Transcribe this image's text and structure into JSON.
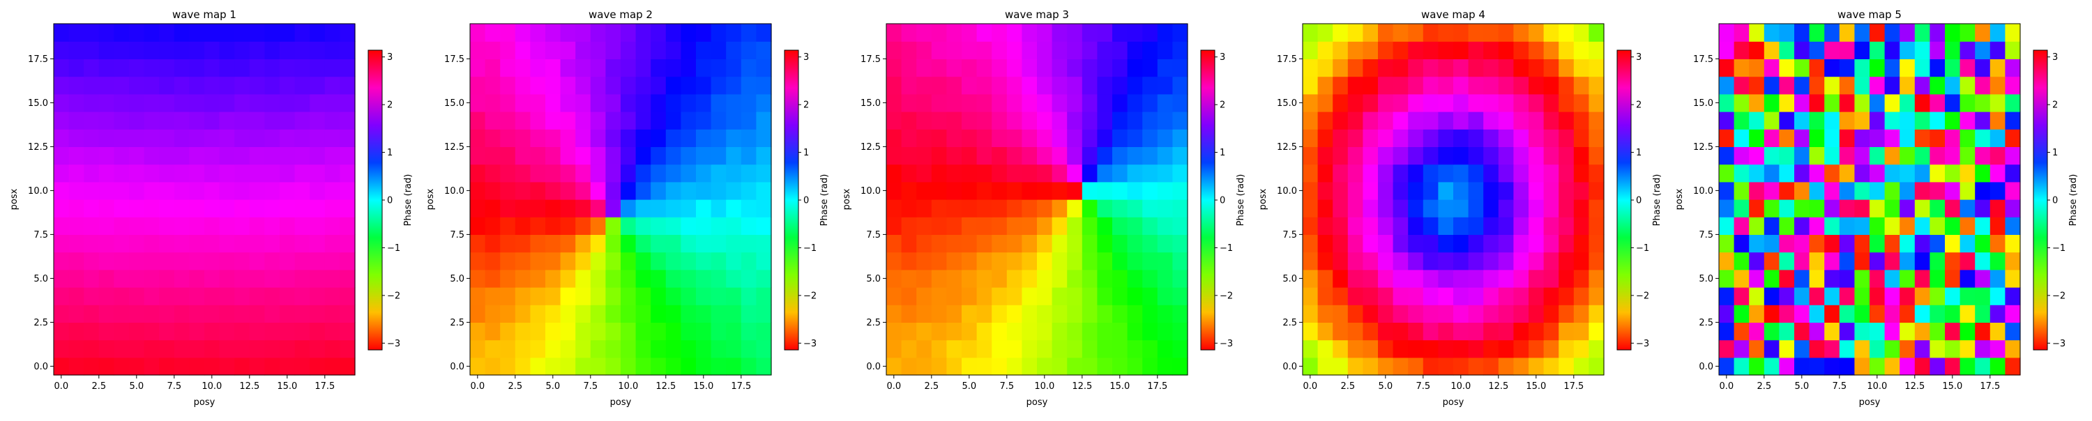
{
  "figure": {
    "colorbar_label": "Phase (rad)",
    "colorbar_ticks": [
      "3",
      "2",
      "1",
      "0",
      "−1",
      "−2",
      "−3"
    ],
    "colorbar_tick_values": [
      3,
      2,
      1,
      0,
      -1,
      -2,
      -3
    ],
    "colormap": "hsv",
    "colormap_stops": [
      "#ff0000",
      "#ffbf00",
      "#80ff00",
      "#00ff40",
      "#00ffff",
      "#0040ff",
      "#8000ff",
      "#ff00bf",
      "#ff0000"
    ]
  },
  "chart_data": [
    {
      "type": "heatmap",
      "title": "wave map 1",
      "xlabel": "posy",
      "ylabel": "posx",
      "xticks": [
        "0.0",
        "2.5",
        "5.0",
        "7.5",
        "10.0",
        "12.5",
        "15.0",
        "17.5"
      ],
      "yticks": [
        "0.0",
        "2.5",
        "5.0",
        "7.5",
        "10.0",
        "12.5",
        "15.0",
        "17.5"
      ],
      "xlim": [
        -0.5,
        19.5
      ],
      "ylim": [
        -0.5,
        19.5
      ],
      "grid_size": [
        20,
        20
      ],
      "value_range": [
        -3.14,
        3.14
      ],
      "pattern": "smooth_gradient"
    },
    {
      "type": "heatmap",
      "title": "wave map 2",
      "xlabel": "posy",
      "ylabel": "posx",
      "xticks": [
        "0.0",
        "2.5",
        "5.0",
        "7.5",
        "10.0",
        "12.5",
        "15.0",
        "17.5"
      ],
      "yticks": [
        "0.0",
        "2.5",
        "5.0",
        "7.5",
        "10.0",
        "12.5",
        "15.0",
        "17.5"
      ],
      "xlim": [
        -0.5,
        19.5
      ],
      "ylim": [
        -0.5,
        19.5
      ],
      "grid_size": [
        20,
        20
      ],
      "value_range": [
        -3.14,
        3.14
      ],
      "pattern": "spiral_center",
      "center": [
        9,
        8.5
      ]
    },
    {
      "type": "heatmap",
      "title": "wave map 3",
      "xlabel": "posy",
      "ylabel": "posx",
      "xticks": [
        "0.0",
        "2.5",
        "5.0",
        "7.5",
        "10.0",
        "12.5",
        "15.0",
        "17.5"
      ],
      "yticks": [
        "0.0",
        "2.5",
        "5.0",
        "7.5",
        "10.0",
        "12.5",
        "15.0",
        "17.5"
      ],
      "xlim": [
        -0.5,
        19.5
      ],
      "ylim": [
        -0.5,
        19.5
      ],
      "grid_size": [
        20,
        20
      ],
      "value_range": [
        -3.14,
        3.14
      ],
      "pattern": "spiral_center",
      "center": [
        12.5,
        10
      ]
    },
    {
      "type": "heatmap",
      "title": "wave map 4",
      "xlabel": "posy",
      "ylabel": "posx",
      "xticks": [
        "0.0",
        "2.5",
        "5.0",
        "7.5",
        "10.0",
        "12.5",
        "15.0",
        "17.5"
      ],
      "yticks": [
        "0.0",
        "2.5",
        "5.0",
        "7.5",
        "10.0",
        "12.5",
        "15.0",
        "17.5"
      ],
      "xlim": [
        -0.5,
        19.5
      ],
      "ylim": [
        -0.5,
        19.5
      ],
      "grid_size": [
        20,
        20
      ],
      "value_range": [
        -3.14,
        3.14
      ],
      "pattern": "target_rings",
      "center": [
        9.5,
        9.5
      ]
    },
    {
      "type": "heatmap",
      "title": "wave map 5",
      "xlabel": "posy",
      "ylabel": "posx",
      "xticks": [
        "0.0",
        "2.5",
        "5.0",
        "7.5",
        "10.0",
        "12.5",
        "15.0",
        "17.5"
      ],
      "yticks": [
        "0.0",
        "2.5",
        "5.0",
        "7.5",
        "10.0",
        "12.5",
        "15.0",
        "17.5"
      ],
      "xlim": [
        -0.5,
        19.5
      ],
      "ylim": [
        -0.5,
        19.5
      ],
      "grid_size": [
        20,
        20
      ],
      "value_range": [
        -3.14,
        3.14
      ],
      "pattern": "random_noise"
    }
  ]
}
